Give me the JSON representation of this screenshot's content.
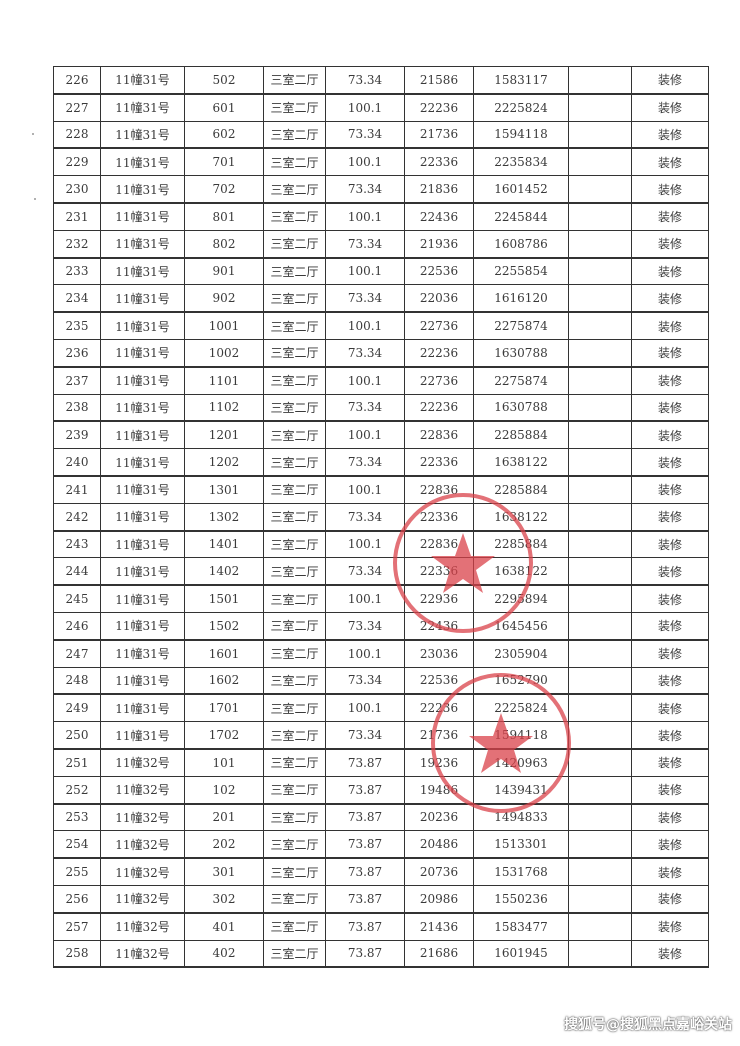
{
  "table": {
    "rows": [
      [
        "226",
        "11幢31号",
        "502",
        "三室二厅",
        "73.34",
        "21586",
        "1583117",
        "",
        "装修"
      ],
      [
        "227",
        "11幢31号",
        "601",
        "三室二厅",
        "100.1",
        "22236",
        "2225824",
        "",
        "装修"
      ],
      [
        "228",
        "11幢31号",
        "602",
        "三室二厅",
        "73.34",
        "21736",
        "1594118",
        "",
        "装修"
      ],
      [
        "229",
        "11幢31号",
        "701",
        "三室二厅",
        "100.1",
        "22336",
        "2235834",
        "",
        "装修"
      ],
      [
        "230",
        "11幢31号",
        "702",
        "三室二厅",
        "73.34",
        "21836",
        "1601452",
        "",
        "装修"
      ],
      [
        "231",
        "11幢31号",
        "801",
        "三室二厅",
        "100.1",
        "22436",
        "2245844",
        "",
        "装修"
      ],
      [
        "232",
        "11幢31号",
        "802",
        "三室二厅",
        "73.34",
        "21936",
        "1608786",
        "",
        "装修"
      ],
      [
        "233",
        "11幢31号",
        "901",
        "三室二厅",
        "100.1",
        "22536",
        "2255854",
        "",
        "装修"
      ],
      [
        "234",
        "11幢31号",
        "902",
        "三室二厅",
        "73.34",
        "22036",
        "1616120",
        "",
        "装修"
      ],
      [
        "235",
        "11幢31号",
        "1001",
        "三室二厅",
        "100.1",
        "22736",
        "2275874",
        "",
        "装修"
      ],
      [
        "236",
        "11幢31号",
        "1002",
        "三室二厅",
        "73.34",
        "22236",
        "1630788",
        "",
        "装修"
      ],
      [
        "237",
        "11幢31号",
        "1101",
        "三室二厅",
        "100.1",
        "22736",
        "2275874",
        "",
        "装修"
      ],
      [
        "238",
        "11幢31号",
        "1102",
        "三室二厅",
        "73.34",
        "22236",
        "1630788",
        "",
        "装修"
      ],
      [
        "239",
        "11幢31号",
        "1201",
        "三室二厅",
        "100.1",
        "22836",
        "2285884",
        "",
        "装修"
      ],
      [
        "240",
        "11幢31号",
        "1202",
        "三室二厅",
        "73.34",
        "22336",
        "1638122",
        "",
        "装修"
      ],
      [
        "241",
        "11幢31号",
        "1301",
        "三室二厅",
        "100.1",
        "22836",
        "2285884",
        "",
        "装修"
      ],
      [
        "242",
        "11幢31号",
        "1302",
        "三室二厅",
        "73.34",
        "22336",
        "1638122",
        "",
        "装修"
      ],
      [
        "243",
        "11幢31号",
        "1401",
        "三室二厅",
        "100.1",
        "22836",
        "2285884",
        "",
        "装修"
      ],
      [
        "244",
        "11幢31号",
        "1402",
        "三室二厅",
        "73.34",
        "22336",
        "1638122",
        "",
        "装修"
      ],
      [
        "245",
        "11幢31号",
        "1501",
        "三室二厅",
        "100.1",
        "22936",
        "2295894",
        "",
        "装修"
      ],
      [
        "246",
        "11幢31号",
        "1502",
        "三室二厅",
        "73.34",
        "22436",
        "1645456",
        "",
        "装修"
      ],
      [
        "247",
        "11幢31号",
        "1601",
        "三室二厅",
        "100.1",
        "23036",
        "2305904",
        "",
        "装修"
      ],
      [
        "248",
        "11幢31号",
        "1602",
        "三室二厅",
        "73.34",
        "22536",
        "1652790",
        "",
        "装修"
      ],
      [
        "249",
        "11幢31号",
        "1701",
        "三室二厅",
        "100.1",
        "22236",
        "2225824",
        "",
        "装修"
      ],
      [
        "250",
        "11幢31号",
        "1702",
        "三室二厅",
        "73.34",
        "21736",
        "1594118",
        "",
        "装修"
      ],
      [
        "251",
        "11幢32号",
        "101",
        "三室二厅",
        "73.87",
        "19236",
        "1420963",
        "",
        "装修"
      ],
      [
        "252",
        "11幢32号",
        "102",
        "三室二厅",
        "73.87",
        "19486",
        "1439431",
        "",
        "装修"
      ],
      [
        "253",
        "11幢32号",
        "201",
        "三室二厅",
        "73.87",
        "20236",
        "1494833",
        "",
        "装修"
      ],
      [
        "254",
        "11幢32号",
        "202",
        "三室二厅",
        "73.87",
        "20486",
        "1513301",
        "",
        "装修"
      ],
      [
        "255",
        "11幢32号",
        "301",
        "三室二厅",
        "73.87",
        "20736",
        "1531768",
        "",
        "装修"
      ],
      [
        "256",
        "11幢32号",
        "302",
        "三室二厅",
        "73.87",
        "20986",
        "1550236",
        "",
        "装修"
      ],
      [
        "257",
        "11幢32号",
        "401",
        "三室二厅",
        "73.87",
        "21436",
        "1583477",
        "",
        "装修"
      ],
      [
        "258",
        "11幢32号",
        "402",
        "三室二厅",
        "73.87",
        "21686",
        "1601945",
        "",
        "装修"
      ]
    ]
  },
  "stamps": {
    "color": "#d9414a",
    "icon": "red-star-seal"
  },
  "watermark": "搜狐号@搜狐黑点嘉峪关站"
}
